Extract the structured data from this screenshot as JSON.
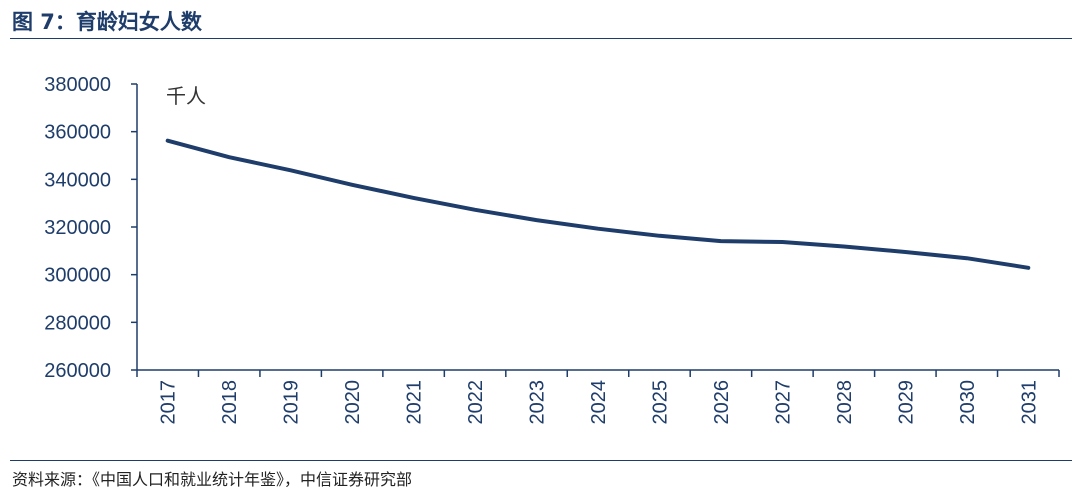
{
  "figure": {
    "title": "图 7：育龄妇女人数",
    "source": "资料来源：《中国人口和就业统计年鉴》，中信证券研究部"
  },
  "colors": {
    "line": "#1f3d6b",
    "axis": "#1f3d6b",
    "text": "#1f3d6b"
  },
  "chart_data": {
    "type": "line",
    "title": "",
    "xlabel": "",
    "ylabel": "",
    "unit_label": "千人",
    "categories": [
      "2017",
      "2018",
      "2019",
      "2020",
      "2021",
      "2022",
      "2023",
      "2024",
      "2025",
      "2026",
      "2027",
      "2028",
      "2029",
      "2030",
      "2031"
    ],
    "series": [
      {
        "values": [
          356200,
          349300,
          343800,
          337700,
          332200,
          327200,
          322900,
          319300,
          316300,
          314100,
          313700,
          311800,
          309500,
          306900,
          302900
        ]
      }
    ],
    "ylim": [
      260000,
      380000
    ],
    "yticks": [
      "260000",
      "280000",
      "300000",
      "320000",
      "340000",
      "360000",
      "380000"
    ],
    "grid": false,
    "legend": "none"
  }
}
